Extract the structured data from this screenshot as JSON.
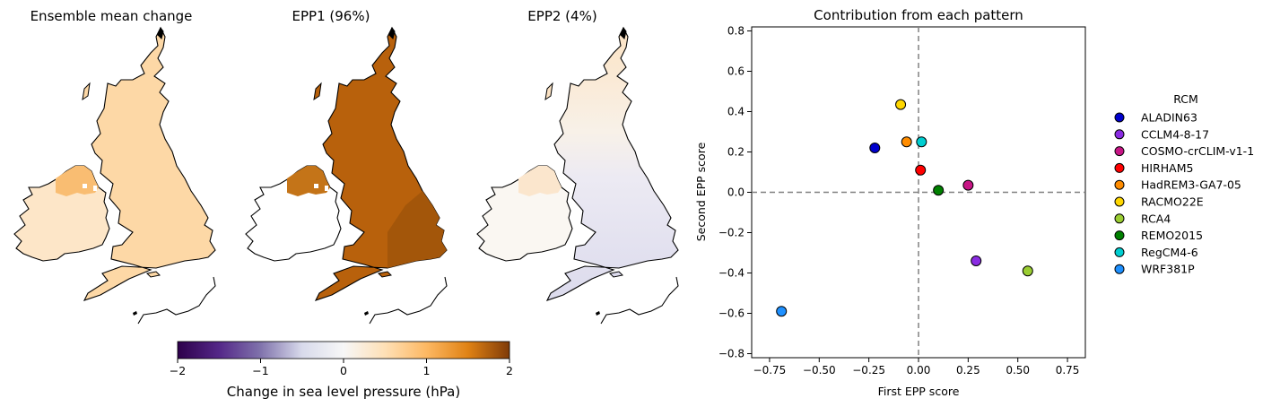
{
  "maps": {
    "titles": [
      "Ensemble mean change",
      "EPP1 (96%)",
      "EPP2 (4%)"
    ],
    "colorbar": {
      "label": "Change in sea level pressure (hPa)",
      "range": [
        -2,
        2
      ],
      "ticks": [
        -2,
        -1,
        0,
        1,
        2
      ],
      "tick_labels": [
        "−2",
        "−1",
        "0",
        "1",
        "2"
      ],
      "colormap": "PuOr_r"
    },
    "fill_colors": {
      "gb_ensemble": "#fdd8a6",
      "ire_ensemble": "#fde6c8",
      "ni_ensemble": "#f9bd72",
      "gb_epp1": "#b8610c",
      "ire_epp1": "#ffffff",
      "ni_epp1": "#c47418",
      "gb_epp2": "#e4e2ef",
      "north_epp2": "#fce8cf",
      "ire_epp2": "#faf7f2",
      "ni_epp2": "#fbe6cd"
    }
  },
  "chart_data": {
    "type": "scatter",
    "title": "Contribution from each pattern",
    "xlabel": "First EPP score",
    "ylabel": "Second EPP score",
    "xlim": [
      -0.84,
      0.84
    ],
    "ylim": [
      -0.82,
      0.82
    ],
    "xticks": [
      -0.75,
      -0.5,
      -0.25,
      0.0,
      0.25,
      0.5,
      0.75
    ],
    "xtick_labels": [
      "−0.75",
      "−0.50",
      "−0.25",
      "0.00",
      "0.25",
      "0.50",
      "0.75"
    ],
    "yticks": [
      -0.8,
      -0.6,
      -0.4,
      -0.2,
      0.0,
      0.2,
      0.4,
      0.6,
      0.8
    ],
    "ytick_labels": [
      "−0.8",
      "−0.6",
      "−0.4",
      "−0.2",
      "0.0",
      "0.2",
      "0.4",
      "0.6",
      "0.8"
    ],
    "reference_lines": {
      "x": 0,
      "y": 0,
      "style": "dashed",
      "color": "#808080"
    },
    "legend": {
      "title": "RCM",
      "placement": "right"
    },
    "points": [
      {
        "name": "ALADIN63",
        "x": -0.22,
        "y": 0.22,
        "color": "#0000cd"
      },
      {
        "name": "CCLM4-8-17",
        "x": 0.29,
        "y": -0.34,
        "color": "#8a2be2"
      },
      {
        "name": "COSMO-crCLIM-v1-1",
        "x": 0.25,
        "y": 0.035,
        "color": "#c71585"
      },
      {
        "name": "HIRHAM5",
        "x": 0.01,
        "y": 0.11,
        "color": "#ff0000"
      },
      {
        "name": "HadREM3-GA7-05",
        "x": -0.06,
        "y": 0.25,
        "color": "#ff8c00"
      },
      {
        "name": "RACMO22E",
        "x": -0.09,
        "y": 0.435,
        "color": "#ffd700"
      },
      {
        "name": "RCA4",
        "x": 0.55,
        "y": -0.39,
        "color": "#9acd32"
      },
      {
        "name": "REMO2015",
        "x": 0.1,
        "y": 0.01,
        "color": "#008000"
      },
      {
        "name": "RegCM4-6",
        "x": 0.015,
        "y": 0.25,
        "color": "#00ced1"
      },
      {
        "name": "WRF381P",
        "x": -0.69,
        "y": -0.59,
        "color": "#1e90ff"
      }
    ]
  }
}
